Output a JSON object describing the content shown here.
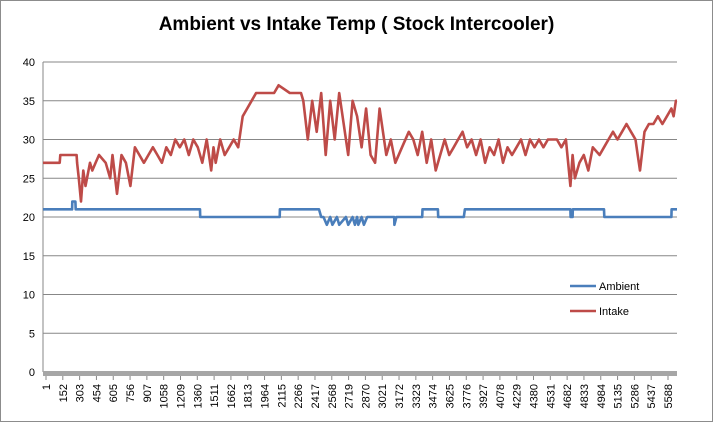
{
  "chart_data": {
    "type": "line",
    "title": "Ambient vs Intake Temp ( Stock Intercooler)",
    "xlabel": "",
    "ylabel": "",
    "ylim": [
      0,
      40
    ],
    "yticks": [
      0,
      5,
      10,
      15,
      20,
      25,
      30,
      35,
      40
    ],
    "xticks": [
      "1",
      "152",
      "303",
      "454",
      "605",
      "756",
      "907",
      "1058",
      "1209",
      "1360",
      "1511",
      "1662",
      "1813",
      "1964",
      "2115",
      "2266",
      "2417",
      "2568",
      "2719",
      "2870",
      "3021",
      "3172",
      "3323",
      "3474",
      "3625",
      "3776",
      "3927",
      "4078",
      "4229",
      "4380",
      "4531",
      "4682",
      "4833",
      "4984",
      "5135",
      "5286",
      "5437",
      "5588"
    ],
    "xlim": [
      1,
      5650
    ],
    "grid": "horizontal",
    "legend": "right",
    "series": [
      {
        "name": "Ambient",
        "color": "#4a7ebb",
        "x": [
          1,
          260,
          262,
          290,
          292,
          1400,
          1402,
          2110,
          2112,
          2460,
          2480,
          2500,
          2530,
          2560,
          2580,
          2620,
          2640,
          2700,
          2720,
          2760,
          2780,
          2800,
          2810,
          2840,
          2860,
          2890,
          3130,
          3132,
          3150,
          3170,
          3380,
          3382,
          3520,
          3522,
          3750,
          3760,
          3770,
          4700,
          4702,
          4720,
          4722,
          5000,
          5002,
          5600,
          5602,
          5650
        ],
        "y": [
          21,
          21,
          22,
          22,
          21,
          21,
          20,
          20,
          21,
          21,
          20,
          20,
          19,
          20,
          19,
          20,
          19,
          20,
          19,
          20,
          19,
          20,
          19,
          20,
          19,
          20,
          20,
          19,
          20,
          20,
          20,
          21,
          21,
          20,
          20,
          21,
          21,
          21,
          20,
          20,
          21,
          21,
          20,
          20,
          21,
          21
        ]
      },
      {
        "name": "Intake",
        "color": "#be4b48",
        "x": [
          1,
          150,
          155,
          300,
          305,
          320,
          340,
          360,
          380,
          420,
          440,
          470,
          500,
          560,
          600,
          620,
          660,
          700,
          740,
          780,
          820,
          860,
          900,
          940,
          980,
          1020,
          1060,
          1100,
          1140,
          1180,
          1220,
          1260,
          1300,
          1340,
          1380,
          1420,
          1460,
          1500,
          1520,
          1540,
          1580,
          1620,
          1660,
          1700,
          1740,
          1780,
          1820,
          1860,
          1900,
          1940,
          1980,
          2020,
          2060,
          2100,
          2200,
          2300,
          2320,
          2360,
          2400,
          2440,
          2480,
          2520,
          2560,
          2600,
          2640,
          2680,
          2720,
          2760,
          2800,
          2840,
          2880,
          2920,
          2960,
          3000,
          3060,
          3100,
          3140,
          3200,
          3260,
          3300,
          3340,
          3380,
          3420,
          3460,
          3500,
          3540,
          3580,
          3620,
          3660,
          3700,
          3740,
          3780,
          3820,
          3860,
          3900,
          3940,
          3980,
          4020,
          4060,
          4100,
          4140,
          4180,
          4220,
          4260,
          4300,
          4340,
          4380,
          4420,
          4460,
          4500,
          4540,
          4580,
          4620,
          4660,
          4700,
          4720,
          4740,
          4780,
          4820,
          4860,
          4900,
          4960,
          5000,
          5040,
          5080,
          5120,
          5160,
          5200,
          5240,
          5280,
          5300,
          5320,
          5360,
          5400,
          5440,
          5480,
          5520,
          5560,
          5600,
          5620,
          5640,
          5650
        ],
        "y": [
          27,
          27,
          28,
          28,
          27,
          25,
          22,
          26,
          24,
          27,
          26,
          27,
          28,
          27,
          25,
          28,
          23,
          28,
          27,
          24,
          29,
          28,
          27,
          28,
          29,
          28,
          27,
          29,
          28,
          30,
          29,
          30,
          28,
          30,
          29,
          27,
          30,
          26,
          29,
          27,
          30,
          28,
          29,
          30,
          29,
          33,
          34,
          35,
          36,
          36,
          36,
          36,
          36,
          37,
          36,
          36,
          35,
          30,
          35,
          31,
          36,
          28,
          35,
          30,
          36,
          32,
          28,
          35,
          33,
          29,
          34,
          28,
          27,
          34,
          28,
          30,
          27,
          29,
          31,
          30,
          28,
          31,
          27,
          30,
          26,
          28,
          30,
          28,
          29,
          30,
          31,
          29,
          30,
          28,
          30,
          27,
          29,
          28,
          30,
          27,
          29,
          28,
          29,
          30,
          28,
          30,
          29,
          30,
          29,
          30,
          30,
          30,
          29,
          30,
          24,
          28,
          25,
          27,
          28,
          26,
          29,
          28,
          29,
          30,
          31,
          30,
          31,
          32,
          31,
          30,
          28,
          26,
          31,
          32,
          32,
          33,
          32,
          33,
          34,
          33,
          35,
          35
        ]
      }
    ]
  }
}
